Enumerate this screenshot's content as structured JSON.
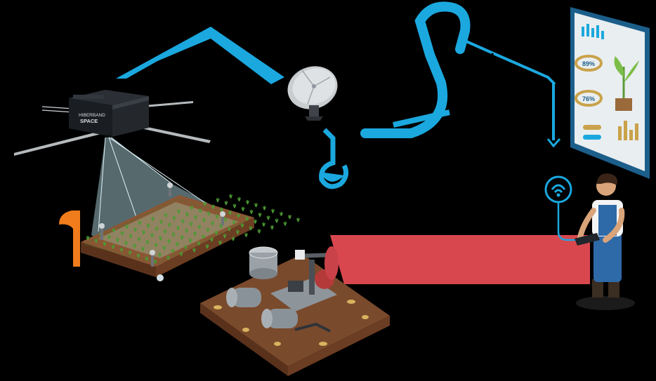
{
  "diagram": {
    "satellite": {
      "label_line1": "HIBERBAND",
      "label_line2": "SPACE"
    },
    "dashboard": {
      "gauge_labels": [
        "89%",
        "76%"
      ]
    },
    "colors": {
      "link_blue": "#1ba8df",
      "return_orange": "#f07c1c",
      "link_red": "#d9474e",
      "soil": "#7a4a2c",
      "soil_edge": "#5a321c",
      "dashboard_bg": "#e9eef0",
      "dashboard_accent": "#c9a24a",
      "worker_overall": "#2f6aa8"
    }
  }
}
